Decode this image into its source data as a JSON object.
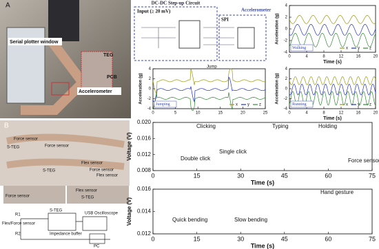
{
  "panel_a": {
    "label": "A",
    "serial_plotter": "Serial plotter window",
    "teg": "TEG",
    "pcb": "PCB",
    "accelerometer": "Accelerometer"
  },
  "circuit": {
    "title": "DC-DC Step-up Circuit",
    "input": "Input (≥ 20 mV)",
    "spi": "SPI",
    "accelerometer": "Accelerometer"
  },
  "plots": [
    {
      "mode": "Walking",
      "ylabel": "Acceleration (g)",
      "xlabel": "Time (s)",
      "xlim": [
        0,
        20
      ],
      "ylim": [
        -4,
        4
      ],
      "xticks": [
        0,
        4,
        8,
        12,
        16,
        20
      ],
      "yticks": [
        -4,
        -2,
        0,
        2,
        4
      ],
      "legend": [
        "x",
        "y",
        "z"
      ],
      "colors": [
        "#9a9a10",
        "#2030c0",
        "#2e8b2e"
      ],
      "annotations": []
    },
    {
      "mode": "Jumping",
      "ylabel": "Acceleration (g)",
      "xlim": [
        0,
        25
      ],
      "ylim": [
        -4,
        4
      ],
      "xticks": [
        0,
        5,
        10,
        15,
        20,
        25
      ],
      "yticks": [
        -4,
        -2,
        0,
        2,
        4
      ],
      "legend": [
        "x",
        "y",
        "z"
      ],
      "colors": [
        "#9a9a10",
        "#2030c0",
        "#2e8b2e"
      ],
      "annotations": [
        "Jump"
      ]
    },
    {
      "mode": "Running",
      "ylabel": "Acceleration (g)",
      "xlabel": "Time (s)",
      "xlim": [
        0,
        20
      ],
      "ylim": [
        -4,
        4
      ],
      "xticks": [
        0,
        4,
        8,
        12,
        16,
        20
      ],
      "yticks": [
        -4,
        -2,
        0,
        2,
        4
      ],
      "legend": [
        "x",
        "y",
        "z"
      ],
      "colors": [
        "#9a9a10",
        "#2030c0",
        "#2e8b2e"
      ],
      "annotations": []
    },
    {
      "ylabel": "Voltage (V)",
      "xlabel": "Time (s)",
      "xlim": [
        0,
        75
      ],
      "ylim": [
        0.008,
        0.02
      ],
      "xticks": [
        0,
        15,
        30,
        45,
        60,
        75
      ],
      "yticks": [
        {
          "value": 0.008,
          "label": "0.008"
        },
        {
          "value": 0.012,
          "label": "0.012"
        },
        {
          "value": 0.016,
          "label": "0.016"
        },
        {
          "value": 0.02,
          "label": "0.020"
        }
      ],
      "annotations": [
        "Clicking",
        "Typing",
        "Holding",
        "Double click",
        "Single click",
        "Force sensor"
      ]
    },
    {
      "ylabel": "Voltage (V)",
      "xlabel": "Time (s)",
      "xlim": [
        0,
        75
      ],
      "ylim": [
        0.012,
        0.016
      ],
      "xticks": [
        0,
        15,
        30,
        45,
        60,
        75
      ],
      "yticks": [
        {
          "value": 0.012,
          "label": "0.012"
        },
        {
          "value": 0.014,
          "label": "0.014"
        },
        {
          "value": 0.016,
          "label": "0.016"
        }
      ],
      "annotations": [
        "Quick bending",
        "Slow bending",
        "Hand gesture"
      ]
    }
  ],
  "panel_b": {
    "label": "B",
    "labels": [
      "Force sensor",
      "S-TEG",
      "Force sensor",
      "Flex sensor",
      "S-TEG",
      "Force sensor",
      "Flex sensor",
      "Force sensor",
      "Flex sensor",
      "S-TEG"
    ],
    "circuit": [
      "S-TEG",
      "Flex/Force sensor",
      "R1",
      "R2",
      "Impedance buffer",
      "USB Oscilloscope",
      "PC"
    ]
  }
}
